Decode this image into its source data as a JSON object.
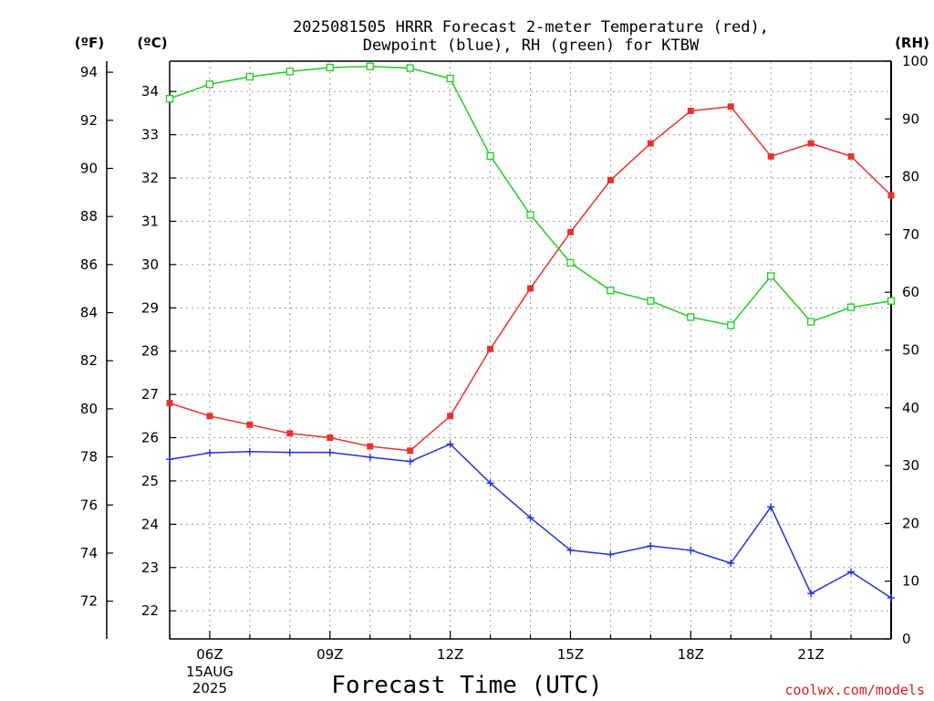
{
  "title_line1": "2025081505 HRRR Forecast 2-meter Temperature (red),",
  "title_line2": "Dewpoint (blue), RH (green) for KTBW",
  "units": {
    "fahrenheit": "(ºF)",
    "celsius": "(ºC)",
    "rh": "(RH)"
  },
  "credit": "coolwx.com/models",
  "chart_data": {
    "type": "line",
    "xlabel": "Forecast Time (UTC)",
    "x": [
      "05Z",
      "06Z",
      "07Z",
      "08Z",
      "09Z",
      "10Z",
      "11Z",
      "12Z",
      "13Z",
      "14Z",
      "15Z",
      "16Z",
      "17Z",
      "18Z",
      "19Z",
      "20Z",
      "21Z",
      "22Z",
      "23Z"
    ],
    "x_tick_labels": [
      "06Z",
      "09Z",
      "12Z",
      "15Z",
      "18Z",
      "21Z"
    ],
    "x_date_label": [
      "15AUG",
      "2025"
    ],
    "y_fahrenheit_ticks": [
      72,
      74,
      76,
      78,
      80,
      82,
      84,
      86,
      88,
      90,
      92,
      94
    ],
    "y_celsius_ticks": [
      22,
      23,
      24,
      25,
      26,
      27,
      28,
      29,
      30,
      31,
      32,
      33,
      34
    ],
    "y_rh_ticks": [
      0,
      10,
      20,
      30,
      40,
      50,
      60,
      70,
      80,
      90,
      100
    ],
    "y_celsius_range": [
      21.35,
      34.7
    ],
    "y_rh_range": [
      0,
      100
    ],
    "grid": true,
    "series": [
      {
        "name": "Temperature",
        "color": "#e8332e",
        "axis": "celsius",
        "marker": "filled-square",
        "values": [
          26.8,
          26.5,
          26.3,
          26.1,
          26.0,
          25.8,
          25.7,
          26.5,
          28.05,
          29.45,
          30.75,
          31.95,
          32.8,
          33.55,
          33.65,
          32.5,
          32.8,
          32.5,
          31.6
        ]
      },
      {
        "name": "Dewpoint",
        "color": "#2233dd",
        "axis": "celsius",
        "marker": "plus",
        "values": [
          25.5,
          25.65,
          25.68,
          25.66,
          25.66,
          25.55,
          25.45,
          25.85,
          24.95,
          24.15,
          23.4,
          23.3,
          23.5,
          23.4,
          23.1,
          24.4,
          22.4,
          22.9,
          22.3
        ]
      },
      {
        "name": "RH",
        "color": "#22cc22",
        "axis": "rh",
        "marker": "open-square",
        "values": [
          93.5,
          96.0,
          97.3,
          98.2,
          98.9,
          99.1,
          98.8,
          97.0,
          83.6,
          73.4,
          65.1,
          60.3,
          58.5,
          55.7,
          54.3,
          62.8,
          54.9,
          57.4,
          58.5
        ]
      }
    ]
  }
}
